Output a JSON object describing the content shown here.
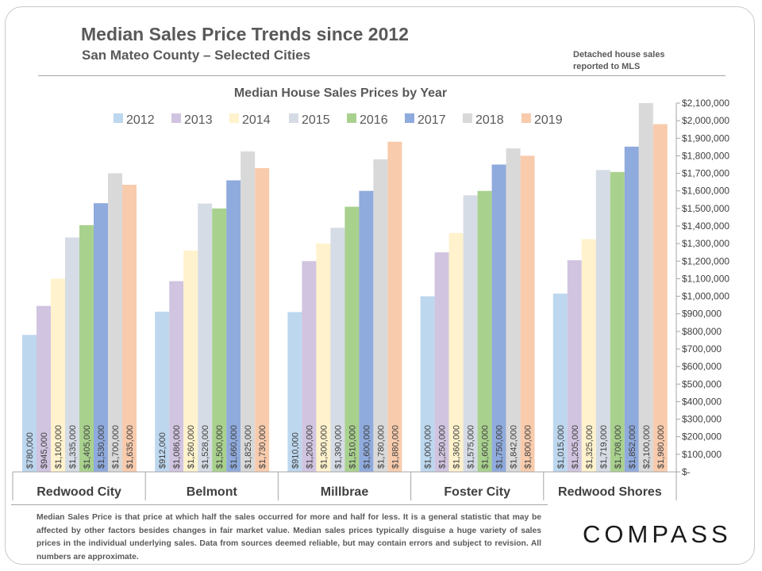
{
  "header": {
    "title": "Median Sales Price Trends since 2012",
    "subtitle": "San Mateo County – Selected Cities",
    "note_line1": "Detached house sales",
    "note_line2": "reported to MLS"
  },
  "footnote": "Median Sales Price is that price at which half the sales occurred for more and half for less. It is a general statistic that may be affected by other factors besides changes in fair market value. Median sales prices typically disguise a huge variety of sales prices in the individual underlying sales. Data from sources deemed reliable, but may contain errors and subject to revision.  All numbers are approximate.",
  "logo": "COMPASS",
  "colors": {
    "2012": "#bdd7ee",
    "2013": "#d1c4e0",
    "2014": "#fff2cc",
    "2015": "#d6dce5",
    "2016": "#a9d18e",
    "2017": "#8faadc",
    "2018": "#d9d9d9",
    "2019": "#f8cbad"
  },
  "chart_data": {
    "type": "bar",
    "title": "Median House Sales Prices by Year",
    "categories": [
      "Redwood City",
      "Belmont",
      "Millbrae",
      "Foster City",
      "Redwood Shores"
    ],
    "series": [
      {
        "name": "2012",
        "values": [
          780000,
          912000,
          910000,
          1000000,
          1015000
        ],
        "labels": [
          "$780,000",
          "$912,000",
          "$910,000",
          "$1,000,000",
          "$1,015,000"
        ]
      },
      {
        "name": "2013",
        "values": [
          945000,
          1086000,
          1200000,
          1250000,
          1205000
        ],
        "labels": [
          "$945,000",
          "$1,086,000",
          "$1,200,000",
          "$1,250,000",
          "$1,205,000"
        ]
      },
      {
        "name": "2014",
        "values": [
          1100000,
          1260000,
          1300000,
          1360000,
          1325000
        ],
        "labels": [
          "$1,100,000",
          "$1,260,000",
          "$1,300,000",
          "$1,360,000",
          "$1,325,000"
        ]
      },
      {
        "name": "2015",
        "values": [
          1335000,
          1528000,
          1390000,
          1575000,
          1719000
        ],
        "labels": [
          "$1,335,000",
          "$1,528,000",
          "$1,390,000",
          "$1,575,000",
          "$1,719,000"
        ]
      },
      {
        "name": "2016",
        "values": [
          1405000,
          1500000,
          1510000,
          1600000,
          1708000
        ],
        "labels": [
          "$1,405,000",
          "$1,500,000",
          "$1,510,000",
          "$1,600,000",
          "$1,708,000"
        ]
      },
      {
        "name": "2017",
        "values": [
          1530000,
          1660000,
          1600000,
          1750000,
          1852000
        ],
        "labels": [
          "$1,530,000",
          "$1,660,000",
          "$1,600,000",
          "$1,750,000",
          "$1,852,000"
        ]
      },
      {
        "name": "2018",
        "values": [
          1700000,
          1825000,
          1780000,
          1842000,
          2100000
        ],
        "labels": [
          "$1,700,000",
          "$1,825,000",
          "$1,780,000",
          "$1,842,000",
          "$2,100,000"
        ]
      },
      {
        "name": "2019",
        "values": [
          1635000,
          1730000,
          1880000,
          1800000,
          1980000
        ],
        "labels": [
          "$1,635,000",
          "$1,730,000",
          "$1,880,000",
          "$1,800,000",
          "$1,980,000"
        ]
      }
    ],
    "ylim": [
      0,
      2100000
    ],
    "y_ticks": [
      0,
      100000,
      200000,
      300000,
      400000,
      500000,
      600000,
      700000,
      800000,
      900000,
      1000000,
      1100000,
      1200000,
      1300000,
      1400000,
      1500000,
      1600000,
      1700000,
      1800000,
      1900000,
      2000000,
      2100000
    ],
    "y_tick_labels": [
      "$-",
      "$100,000",
      "$200,000",
      "$300,000",
      "$400,000",
      "$500,000",
      "$600,000",
      "$700,000",
      "$800,000",
      "$900,000",
      "$1,000,000",
      "$1,100,000",
      "$1,200,000",
      "$1,300,000",
      "$1,400,000",
      "$1,500,000",
      "$1,600,000",
      "$1,700,000",
      "$1,800,000",
      "$1,900,000",
      "$2,000,000",
      "$2,100,000"
    ],
    "y_axis_position": "right",
    "legend_position": "top",
    "grid": false
  }
}
